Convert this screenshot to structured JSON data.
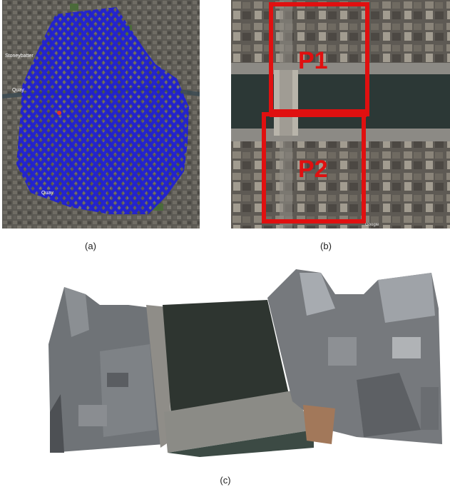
{
  "figure": {
    "panels": [
      {
        "id": "a",
        "caption": "(a)",
        "description_kind": "flight-path-map",
        "path_color": "#1f1fd6",
        "map_labels": [
          "Stoneybatter",
          "Quay",
          "Quay"
        ]
      },
      {
        "id": "b",
        "caption": "(b)",
        "description_kind": "satellite-region-selection",
        "box_color": "#e01010",
        "regions": [
          "P1",
          "P2"
        ],
        "watermark": "Google"
      },
      {
        "id": "c",
        "caption": "(c)",
        "description_kind": "3d-point-cloud-render",
        "water_color": "#2e3530"
      }
    ]
  }
}
